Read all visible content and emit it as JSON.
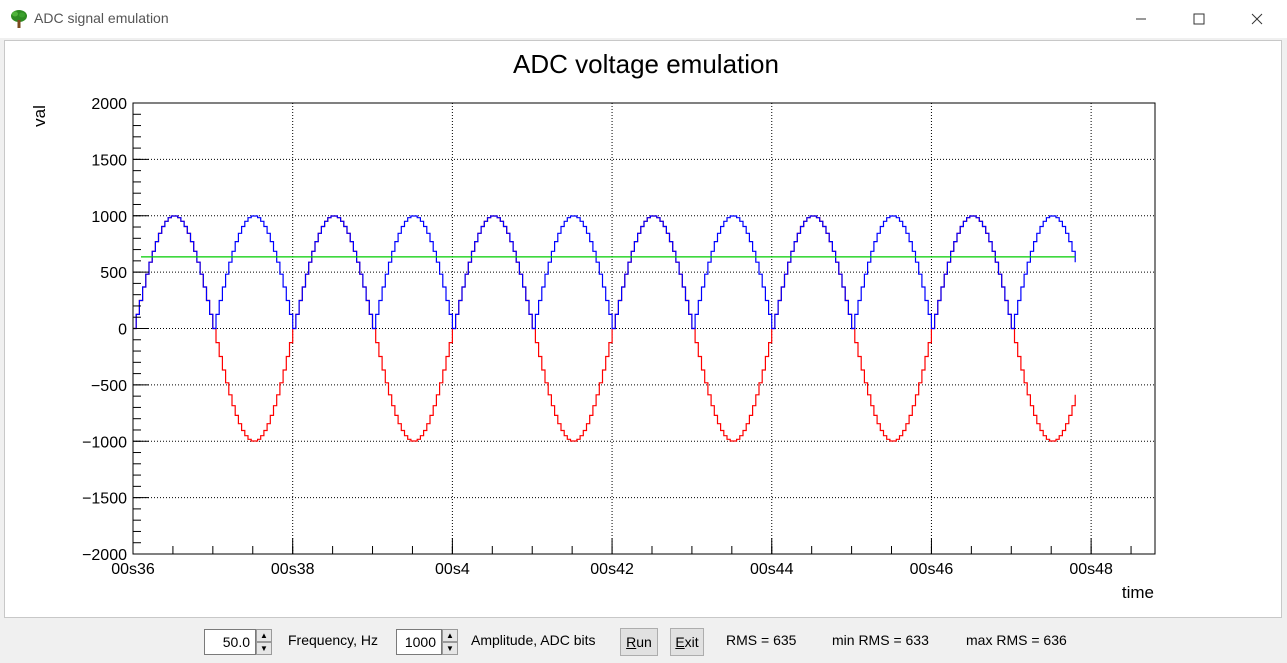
{
  "window": {
    "title": "ADC signal emulation",
    "controls": {
      "minimize": "minimize-icon",
      "maximize": "maximize-icon",
      "close": "close-icon"
    }
  },
  "chart_data": {
    "type": "line",
    "title": "ADC voltage emulation",
    "xlabel": "time",
    "ylabel": "val",
    "xlim": [
      36,
      48.8
    ],
    "ylim": [
      -2000,
      2000
    ],
    "x_ticks": [
      36,
      38,
      40,
      42,
      44,
      46,
      48
    ],
    "x_tick_labels": [
      "00s36",
      "00s38",
      "00s4",
      "00s42",
      "00s44",
      "00s46",
      "00s48"
    ],
    "y_ticks": [
      2000,
      1500,
      1000,
      500,
      0,
      -500,
      -1000,
      -1500,
      -2000
    ],
    "y_tick_labels": [
      "2000",
      "1500",
      "1000",
      "500",
      "0",
      "−500",
      "−1000",
      "−1500",
      "−2000"
    ],
    "grid": true,
    "series": [
      {
        "color": "#ff0000",
        "kind": "sine",
        "amplitude": 1000,
        "period": 2,
        "x_start": 36,
        "x_end": 47.8,
        "step": 0.04
      },
      {
        "color": "#0000ff",
        "kind": "abs_sine",
        "amplitude": 1000,
        "period": 2,
        "x_start": 36,
        "x_end": 47.8,
        "step": 0.04
      },
      {
        "color": "#00cc00",
        "kind": "constant",
        "value": 635,
        "x_start": 36.1,
        "x_end": 47.8
      }
    ]
  },
  "controls": {
    "frequency": {
      "value": "50.0",
      "label": "Frequency, Hz"
    },
    "amplitude": {
      "value": "1000",
      "label": "Amplitude, ADC bits"
    },
    "run_label_prefix": "R",
    "run_label_rest": "un",
    "exit_label_prefix": "E",
    "exit_label_rest": "xit",
    "rms": "RMS = 635",
    "min_rms": "min RMS = 633",
    "max_rms": "max RMS = 636"
  }
}
